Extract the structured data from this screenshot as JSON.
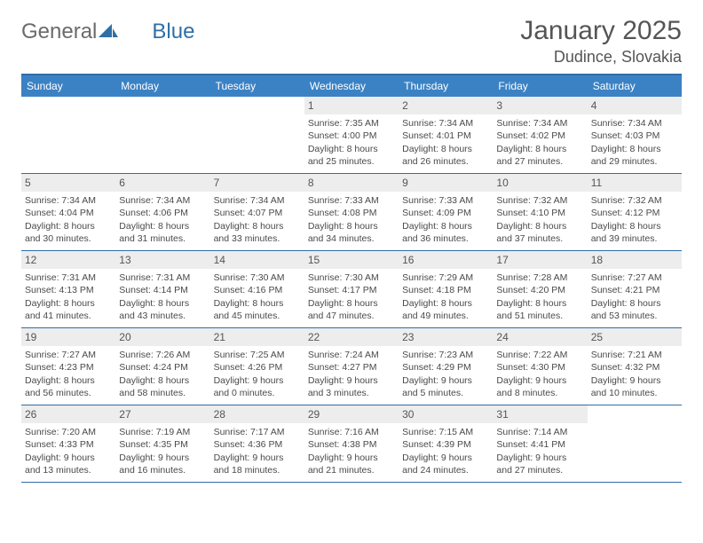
{
  "logo": {
    "left": "General",
    "right": "Blue"
  },
  "title": "January 2025",
  "location": "Dudince, Slovakia",
  "colors": {
    "header_bg": "#3b82c4",
    "border": "#2f6fa7",
    "daynum_bg": "#ededed",
    "text": "#4a4a4a",
    "title": "#555555"
  },
  "daynames": [
    "Sunday",
    "Monday",
    "Tuesday",
    "Wednesday",
    "Thursday",
    "Friday",
    "Saturday"
  ],
  "weeks": [
    [
      null,
      null,
      null,
      {
        "n": "1",
        "sr": "Sunrise: 7:35 AM",
        "ss": "Sunset: 4:00 PM",
        "d1": "Daylight: 8 hours",
        "d2": "and 25 minutes."
      },
      {
        "n": "2",
        "sr": "Sunrise: 7:34 AM",
        "ss": "Sunset: 4:01 PM",
        "d1": "Daylight: 8 hours",
        "d2": "and 26 minutes."
      },
      {
        "n": "3",
        "sr": "Sunrise: 7:34 AM",
        "ss": "Sunset: 4:02 PM",
        "d1": "Daylight: 8 hours",
        "d2": "and 27 minutes."
      },
      {
        "n": "4",
        "sr": "Sunrise: 7:34 AM",
        "ss": "Sunset: 4:03 PM",
        "d1": "Daylight: 8 hours",
        "d2": "and 29 minutes."
      }
    ],
    [
      {
        "n": "5",
        "sr": "Sunrise: 7:34 AM",
        "ss": "Sunset: 4:04 PM",
        "d1": "Daylight: 8 hours",
        "d2": "and 30 minutes."
      },
      {
        "n": "6",
        "sr": "Sunrise: 7:34 AM",
        "ss": "Sunset: 4:06 PM",
        "d1": "Daylight: 8 hours",
        "d2": "and 31 minutes."
      },
      {
        "n": "7",
        "sr": "Sunrise: 7:34 AM",
        "ss": "Sunset: 4:07 PM",
        "d1": "Daylight: 8 hours",
        "d2": "and 33 minutes."
      },
      {
        "n": "8",
        "sr": "Sunrise: 7:33 AM",
        "ss": "Sunset: 4:08 PM",
        "d1": "Daylight: 8 hours",
        "d2": "and 34 minutes."
      },
      {
        "n": "9",
        "sr": "Sunrise: 7:33 AM",
        "ss": "Sunset: 4:09 PM",
        "d1": "Daylight: 8 hours",
        "d2": "and 36 minutes."
      },
      {
        "n": "10",
        "sr": "Sunrise: 7:32 AM",
        "ss": "Sunset: 4:10 PM",
        "d1": "Daylight: 8 hours",
        "d2": "and 37 minutes."
      },
      {
        "n": "11",
        "sr": "Sunrise: 7:32 AM",
        "ss": "Sunset: 4:12 PM",
        "d1": "Daylight: 8 hours",
        "d2": "and 39 minutes."
      }
    ],
    [
      {
        "n": "12",
        "sr": "Sunrise: 7:31 AM",
        "ss": "Sunset: 4:13 PM",
        "d1": "Daylight: 8 hours",
        "d2": "and 41 minutes."
      },
      {
        "n": "13",
        "sr": "Sunrise: 7:31 AM",
        "ss": "Sunset: 4:14 PM",
        "d1": "Daylight: 8 hours",
        "d2": "and 43 minutes."
      },
      {
        "n": "14",
        "sr": "Sunrise: 7:30 AM",
        "ss": "Sunset: 4:16 PM",
        "d1": "Daylight: 8 hours",
        "d2": "and 45 minutes."
      },
      {
        "n": "15",
        "sr": "Sunrise: 7:30 AM",
        "ss": "Sunset: 4:17 PM",
        "d1": "Daylight: 8 hours",
        "d2": "and 47 minutes."
      },
      {
        "n": "16",
        "sr": "Sunrise: 7:29 AM",
        "ss": "Sunset: 4:18 PM",
        "d1": "Daylight: 8 hours",
        "d2": "and 49 minutes."
      },
      {
        "n": "17",
        "sr": "Sunrise: 7:28 AM",
        "ss": "Sunset: 4:20 PM",
        "d1": "Daylight: 8 hours",
        "d2": "and 51 minutes."
      },
      {
        "n": "18",
        "sr": "Sunrise: 7:27 AM",
        "ss": "Sunset: 4:21 PM",
        "d1": "Daylight: 8 hours",
        "d2": "and 53 minutes."
      }
    ],
    [
      {
        "n": "19",
        "sr": "Sunrise: 7:27 AM",
        "ss": "Sunset: 4:23 PM",
        "d1": "Daylight: 8 hours",
        "d2": "and 56 minutes."
      },
      {
        "n": "20",
        "sr": "Sunrise: 7:26 AM",
        "ss": "Sunset: 4:24 PM",
        "d1": "Daylight: 8 hours",
        "d2": "and 58 minutes."
      },
      {
        "n": "21",
        "sr": "Sunrise: 7:25 AM",
        "ss": "Sunset: 4:26 PM",
        "d1": "Daylight: 9 hours",
        "d2": "and 0 minutes."
      },
      {
        "n": "22",
        "sr": "Sunrise: 7:24 AM",
        "ss": "Sunset: 4:27 PM",
        "d1": "Daylight: 9 hours",
        "d2": "and 3 minutes."
      },
      {
        "n": "23",
        "sr": "Sunrise: 7:23 AM",
        "ss": "Sunset: 4:29 PM",
        "d1": "Daylight: 9 hours",
        "d2": "and 5 minutes."
      },
      {
        "n": "24",
        "sr": "Sunrise: 7:22 AM",
        "ss": "Sunset: 4:30 PM",
        "d1": "Daylight: 9 hours",
        "d2": "and 8 minutes."
      },
      {
        "n": "25",
        "sr": "Sunrise: 7:21 AM",
        "ss": "Sunset: 4:32 PM",
        "d1": "Daylight: 9 hours",
        "d2": "and 10 minutes."
      }
    ],
    [
      {
        "n": "26",
        "sr": "Sunrise: 7:20 AM",
        "ss": "Sunset: 4:33 PM",
        "d1": "Daylight: 9 hours",
        "d2": "and 13 minutes."
      },
      {
        "n": "27",
        "sr": "Sunrise: 7:19 AM",
        "ss": "Sunset: 4:35 PM",
        "d1": "Daylight: 9 hours",
        "d2": "and 16 minutes."
      },
      {
        "n": "28",
        "sr": "Sunrise: 7:17 AM",
        "ss": "Sunset: 4:36 PM",
        "d1": "Daylight: 9 hours",
        "d2": "and 18 minutes."
      },
      {
        "n": "29",
        "sr": "Sunrise: 7:16 AM",
        "ss": "Sunset: 4:38 PM",
        "d1": "Daylight: 9 hours",
        "d2": "and 21 minutes."
      },
      {
        "n": "30",
        "sr": "Sunrise: 7:15 AM",
        "ss": "Sunset: 4:39 PM",
        "d1": "Daylight: 9 hours",
        "d2": "and 24 minutes."
      },
      {
        "n": "31",
        "sr": "Sunrise: 7:14 AM",
        "ss": "Sunset: 4:41 PM",
        "d1": "Daylight: 9 hours",
        "d2": "and 27 minutes."
      },
      null
    ]
  ]
}
